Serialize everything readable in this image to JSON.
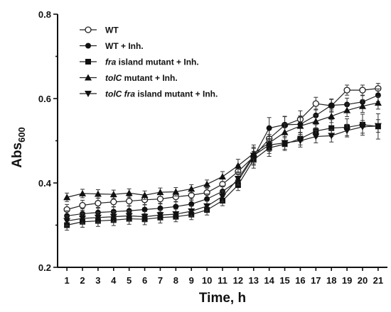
{
  "chart_data": {
    "type": "line",
    "xlabel": "Time, h",
    "ylabel": "Abs",
    "ylabel_sub": "600",
    "xlim": [
      0.4,
      21.6
    ],
    "ylim": [
      0.2,
      0.8
    ],
    "yticks": [
      "0.2",
      "0.4",
      "0.6",
      "0.8"
    ],
    "ytick_values": [
      0.2,
      0.4,
      0.6,
      0.8
    ],
    "x": [
      1,
      2,
      3,
      4,
      5,
      6,
      7,
      8,
      9,
      10,
      11,
      12,
      13,
      14,
      15,
      16,
      17,
      18,
      19,
      20,
      21
    ],
    "grid": false,
    "legend_position": "top-left",
    "series": [
      {
        "name": "WT",
        "legend": [
          {
            "text": "WT",
            "italic": false
          }
        ],
        "marker": "open-circle",
        "values": [
          0.337,
          0.347,
          0.352,
          0.355,
          0.357,
          0.36,
          0.362,
          0.367,
          0.371,
          0.377,
          0.397,
          0.427,
          0.462,
          0.505,
          0.537,
          0.551,
          0.588,
          0.583,
          0.62,
          0.62,
          0.624
        ],
        "err": [
          0.012,
          0.012,
          0.012,
          0.012,
          0.012,
          0.012,
          0.012,
          0.012,
          0.012,
          0.012,
          0.013,
          0.015,
          0.02,
          0.025,
          0.02,
          0.02,
          0.015,
          0.015,
          0.012,
          0.012,
          0.012
        ]
      },
      {
        "name": "WT + Inh.",
        "legend": [
          {
            "text": "WT + Inh.",
            "italic": false
          }
        ],
        "marker": "filled-circle",
        "values": [
          0.322,
          0.327,
          0.33,
          0.332,
          0.334,
          0.337,
          0.34,
          0.344,
          0.35,
          0.362,
          0.38,
          0.405,
          0.462,
          0.53,
          0.538,
          0.539,
          0.56,
          0.584,
          0.586,
          0.592,
          0.608
        ],
        "err": [
          0.012,
          0.012,
          0.012,
          0.012,
          0.012,
          0.012,
          0.012,
          0.012,
          0.012,
          0.012,
          0.013,
          0.015,
          0.02,
          0.025,
          0.02,
          0.02,
          0.015,
          0.015,
          0.015,
          0.015,
          0.015
        ]
      },
      {
        "name": "fra island mutant + Inh.",
        "legend": [
          {
            "text": "fra",
            "italic": true
          },
          {
            "text": " island mutant + Inh.",
            "italic": false
          }
        ],
        "marker": "filled-square",
        "values": [
          0.3,
          0.308,
          0.31,
          0.312,
          0.315,
          0.314,
          0.318,
          0.32,
          0.325,
          0.336,
          0.358,
          0.395,
          0.455,
          0.483,
          0.492,
          0.505,
          0.523,
          0.53,
          0.532,
          0.538,
          0.534
        ],
        "err": [
          0.012,
          0.013,
          0.013,
          0.013,
          0.013,
          0.013,
          0.013,
          0.012,
          0.012,
          0.012,
          0.012,
          0.013,
          0.02,
          0.02,
          0.015,
          0.015,
          0.015,
          0.02,
          0.02,
          0.025,
          0.03
        ]
      },
      {
        "name": "tolC mutant + Inh.",
        "legend": [
          {
            "text": "tolC",
            "italic": true
          },
          {
            "text": " mutant + Inh.",
            "italic": false
          }
        ],
        "marker": "filled-triangle-up",
        "values": [
          0.366,
          0.375,
          0.374,
          0.373,
          0.376,
          0.371,
          0.378,
          0.379,
          0.386,
          0.397,
          0.415,
          0.441,
          0.47,
          0.495,
          0.52,
          0.535,
          0.546,
          0.558,
          0.572,
          0.582,
          0.59
        ],
        "err": [
          0.01,
          0.01,
          0.01,
          0.01,
          0.01,
          0.01,
          0.01,
          0.01,
          0.01,
          0.01,
          0.012,
          0.015,
          0.02,
          0.02,
          0.02,
          0.02,
          0.015,
          0.015,
          0.015,
          0.015,
          0.015
        ]
      },
      {
        "name": "tolC fra island mutant + Inh.",
        "legend": [
          {
            "text": "tolC fra",
            "italic": true
          },
          {
            "text": " island mutant + Inh.",
            "italic": false
          }
        ],
        "marker": "filled-triangle-down",
        "values": [
          0.31,
          0.316,
          0.318,
          0.32,
          0.322,
          0.32,
          0.324,
          0.326,
          0.333,
          0.345,
          0.368,
          0.41,
          0.465,
          0.49,
          0.495,
          0.5,
          0.51,
          0.512,
          0.524,
          0.533,
          0.535
        ],
        "err": [
          0.012,
          0.012,
          0.012,
          0.012,
          0.012,
          0.012,
          0.012,
          0.012,
          0.012,
          0.012,
          0.013,
          0.015,
          0.02,
          0.02,
          0.015,
          0.015,
          0.015,
          0.015,
          0.015,
          0.015,
          0.015
        ]
      }
    ]
  }
}
